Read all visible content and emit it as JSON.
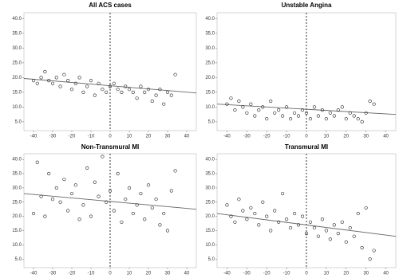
{
  "chart_data": [
    {
      "type": "scatter",
      "title": "All ACS cases",
      "x": [
        -40,
        -38,
        -36,
        -34,
        -32,
        -30,
        -28,
        -26,
        -24,
        -22,
        -20,
        -18,
        -16,
        -14,
        -12,
        -10,
        -8,
        -6,
        -4,
        -2,
        0,
        2,
        4,
        6,
        8,
        10,
        12,
        14,
        16,
        18,
        20,
        22,
        24,
        26,
        28,
        30,
        32,
        34
      ],
      "y": [
        19,
        18,
        20,
        22,
        19,
        18,
        20,
        17,
        21,
        19,
        16,
        18,
        20,
        15,
        17,
        19,
        14,
        18,
        16,
        15,
        17,
        18,
        16,
        15,
        17,
        16,
        15,
        13,
        17,
        15,
        16,
        12,
        14,
        16,
        11,
        15,
        14,
        21
      ],
      "trend_line": {
        "x": [
          -45,
          45
        ],
        "y": [
          19.7,
          14.8
        ]
      },
      "vline": 0,
      "xlim": [
        -45,
        45
      ],
      "ylim": [
        2,
        42
      ],
      "xticks": [
        -40,
        -30,
        -20,
        -10,
        0,
        10,
        20,
        30,
        40
      ],
      "yticks": [
        {
          "value": 5,
          "label": "5.0"
        },
        {
          "value": 10,
          "label": "10.0"
        },
        {
          "value": 15,
          "label": "15.0"
        },
        {
          "value": 20,
          "label": "20.0"
        },
        {
          "value": 25,
          "label": "25.0"
        },
        {
          "value": 30,
          "label": "30.0"
        },
        {
          "value": 35,
          "label": "35.0"
        },
        {
          "value": 40,
          "label": "40.0"
        }
      ]
    },
    {
      "type": "scatter",
      "title": "Unstable Angina",
      "x": [
        -40,
        -38,
        -36,
        -34,
        -32,
        -30,
        -28,
        -26,
        -24,
        -22,
        -20,
        -18,
        -16,
        -14,
        -12,
        -10,
        -8,
        -6,
        -4,
        -2,
        0,
        2,
        4,
        6,
        8,
        10,
        12,
        14,
        16,
        18,
        20,
        22,
        24,
        26,
        28,
        30,
        32,
        34
      ],
      "y": [
        11,
        13,
        9,
        12,
        10,
        8,
        11,
        7,
        9,
        10,
        6,
        12,
        8,
        9,
        7,
        10,
        6,
        8,
        7,
        9,
        8,
        6,
        10,
        7,
        9,
        6,
        8,
        7,
        9,
        10,
        6,
        8,
        7,
        6,
        5,
        8,
        12,
        11
      ],
      "trend_line": {
        "x": [
          -45,
          45
        ],
        "y": [
          11,
          7.5
        ]
      },
      "vline": 0,
      "xlim": [
        -45,
        45
      ],
      "ylim": [
        2,
        42
      ],
      "xticks": [
        -40,
        -30,
        -20,
        -10,
        0,
        10,
        20,
        30,
        40
      ],
      "yticks": [
        {
          "value": 5,
          "label": "5.0"
        },
        {
          "value": 10,
          "label": "10.0"
        },
        {
          "value": 15,
          "label": "15.0"
        },
        {
          "value": 20,
          "label": "20.0"
        },
        {
          "value": 25,
          "label": "25.0"
        },
        {
          "value": 30,
          "label": "30.0"
        },
        {
          "value": 35,
          "label": "35.0"
        },
        {
          "value": 40,
          "label": "40.0"
        }
      ]
    },
    {
      "type": "scatter",
      "title": "Non-Transmural MI",
      "x": [
        -40,
        -38,
        -36,
        -34,
        -32,
        -30,
        -28,
        -26,
        -24,
        -22,
        -20,
        -18,
        -16,
        -14,
        -12,
        -10,
        -8,
        -6,
        -4,
        -2,
        0,
        2,
        4,
        6,
        8,
        10,
        12,
        14,
        16,
        18,
        20,
        22,
        24,
        26,
        28,
        30,
        32,
        34
      ],
      "y": [
        21,
        39,
        27,
        20,
        35,
        26,
        30,
        25,
        33,
        22,
        28,
        31,
        19,
        24,
        37,
        20,
        32,
        27,
        41,
        25,
        29,
        22,
        35,
        18,
        26,
        30,
        21,
        24,
        28,
        19,
        31,
        23,
        26,
        17,
        21,
        15,
        29,
        36
      ],
      "trend_line": {
        "x": [
          -45,
          45
        ],
        "y": [
          28,
          22.5
        ]
      },
      "vline": 0,
      "xlim": [
        -45,
        45
      ],
      "ylim": [
        2,
        42
      ],
      "xticks": [
        -40,
        -30,
        -20,
        -10,
        0,
        10,
        20,
        30,
        40
      ],
      "yticks": [
        {
          "value": 5,
          "label": "5.0"
        },
        {
          "value": 10,
          "label": "10.0"
        },
        {
          "value": 15,
          "label": "15.0"
        },
        {
          "value": 20,
          "label": "20.0"
        },
        {
          "value": 25,
          "label": "25.0"
        },
        {
          "value": 30,
          "label": "30.0"
        },
        {
          "value": 35,
          "label": "35.0"
        },
        {
          "value": 40,
          "label": "40.0"
        }
      ]
    },
    {
      "type": "scatter",
      "title": "Transmural MI",
      "x": [
        -40,
        -38,
        -36,
        -34,
        -32,
        -30,
        -28,
        -26,
        -24,
        -22,
        -20,
        -18,
        -16,
        -14,
        -12,
        -10,
        -8,
        -6,
        -4,
        -2,
        0,
        2,
        4,
        6,
        8,
        10,
        12,
        14,
        16,
        18,
        20,
        22,
        24,
        26,
        28,
        30,
        32,
        34
      ],
      "y": [
        24,
        20,
        18,
        26,
        22,
        19,
        23,
        21,
        17,
        25,
        20,
        15,
        22,
        18,
        28,
        19,
        16,
        21,
        17,
        20,
        14,
        18,
        16,
        13,
        19,
        15,
        12,
        17,
        14,
        18,
        11,
        16,
        13,
        21,
        9,
        23,
        5,
        8
      ],
      "trend_line": {
        "x": [
          -45,
          45
        ],
        "y": [
          21,
          13
        ]
      },
      "vline": 0,
      "xlim": [
        -45,
        45
      ],
      "ylim": [
        2,
        42
      ],
      "xticks": [
        -40,
        -30,
        -20,
        -10,
        0,
        10,
        20,
        30,
        40
      ],
      "yticks": [
        {
          "value": 5,
          "label": "5.0"
        },
        {
          "value": 10,
          "label": "10.0"
        },
        {
          "value": 15,
          "label": "15.0"
        },
        {
          "value": 20,
          "label": "20.0"
        },
        {
          "value": 25,
          "label": "25.0"
        },
        {
          "value": 30,
          "label": "30.0"
        },
        {
          "value": 35,
          "label": "35.0"
        },
        {
          "value": 40,
          "label": "40.0"
        }
      ]
    }
  ]
}
